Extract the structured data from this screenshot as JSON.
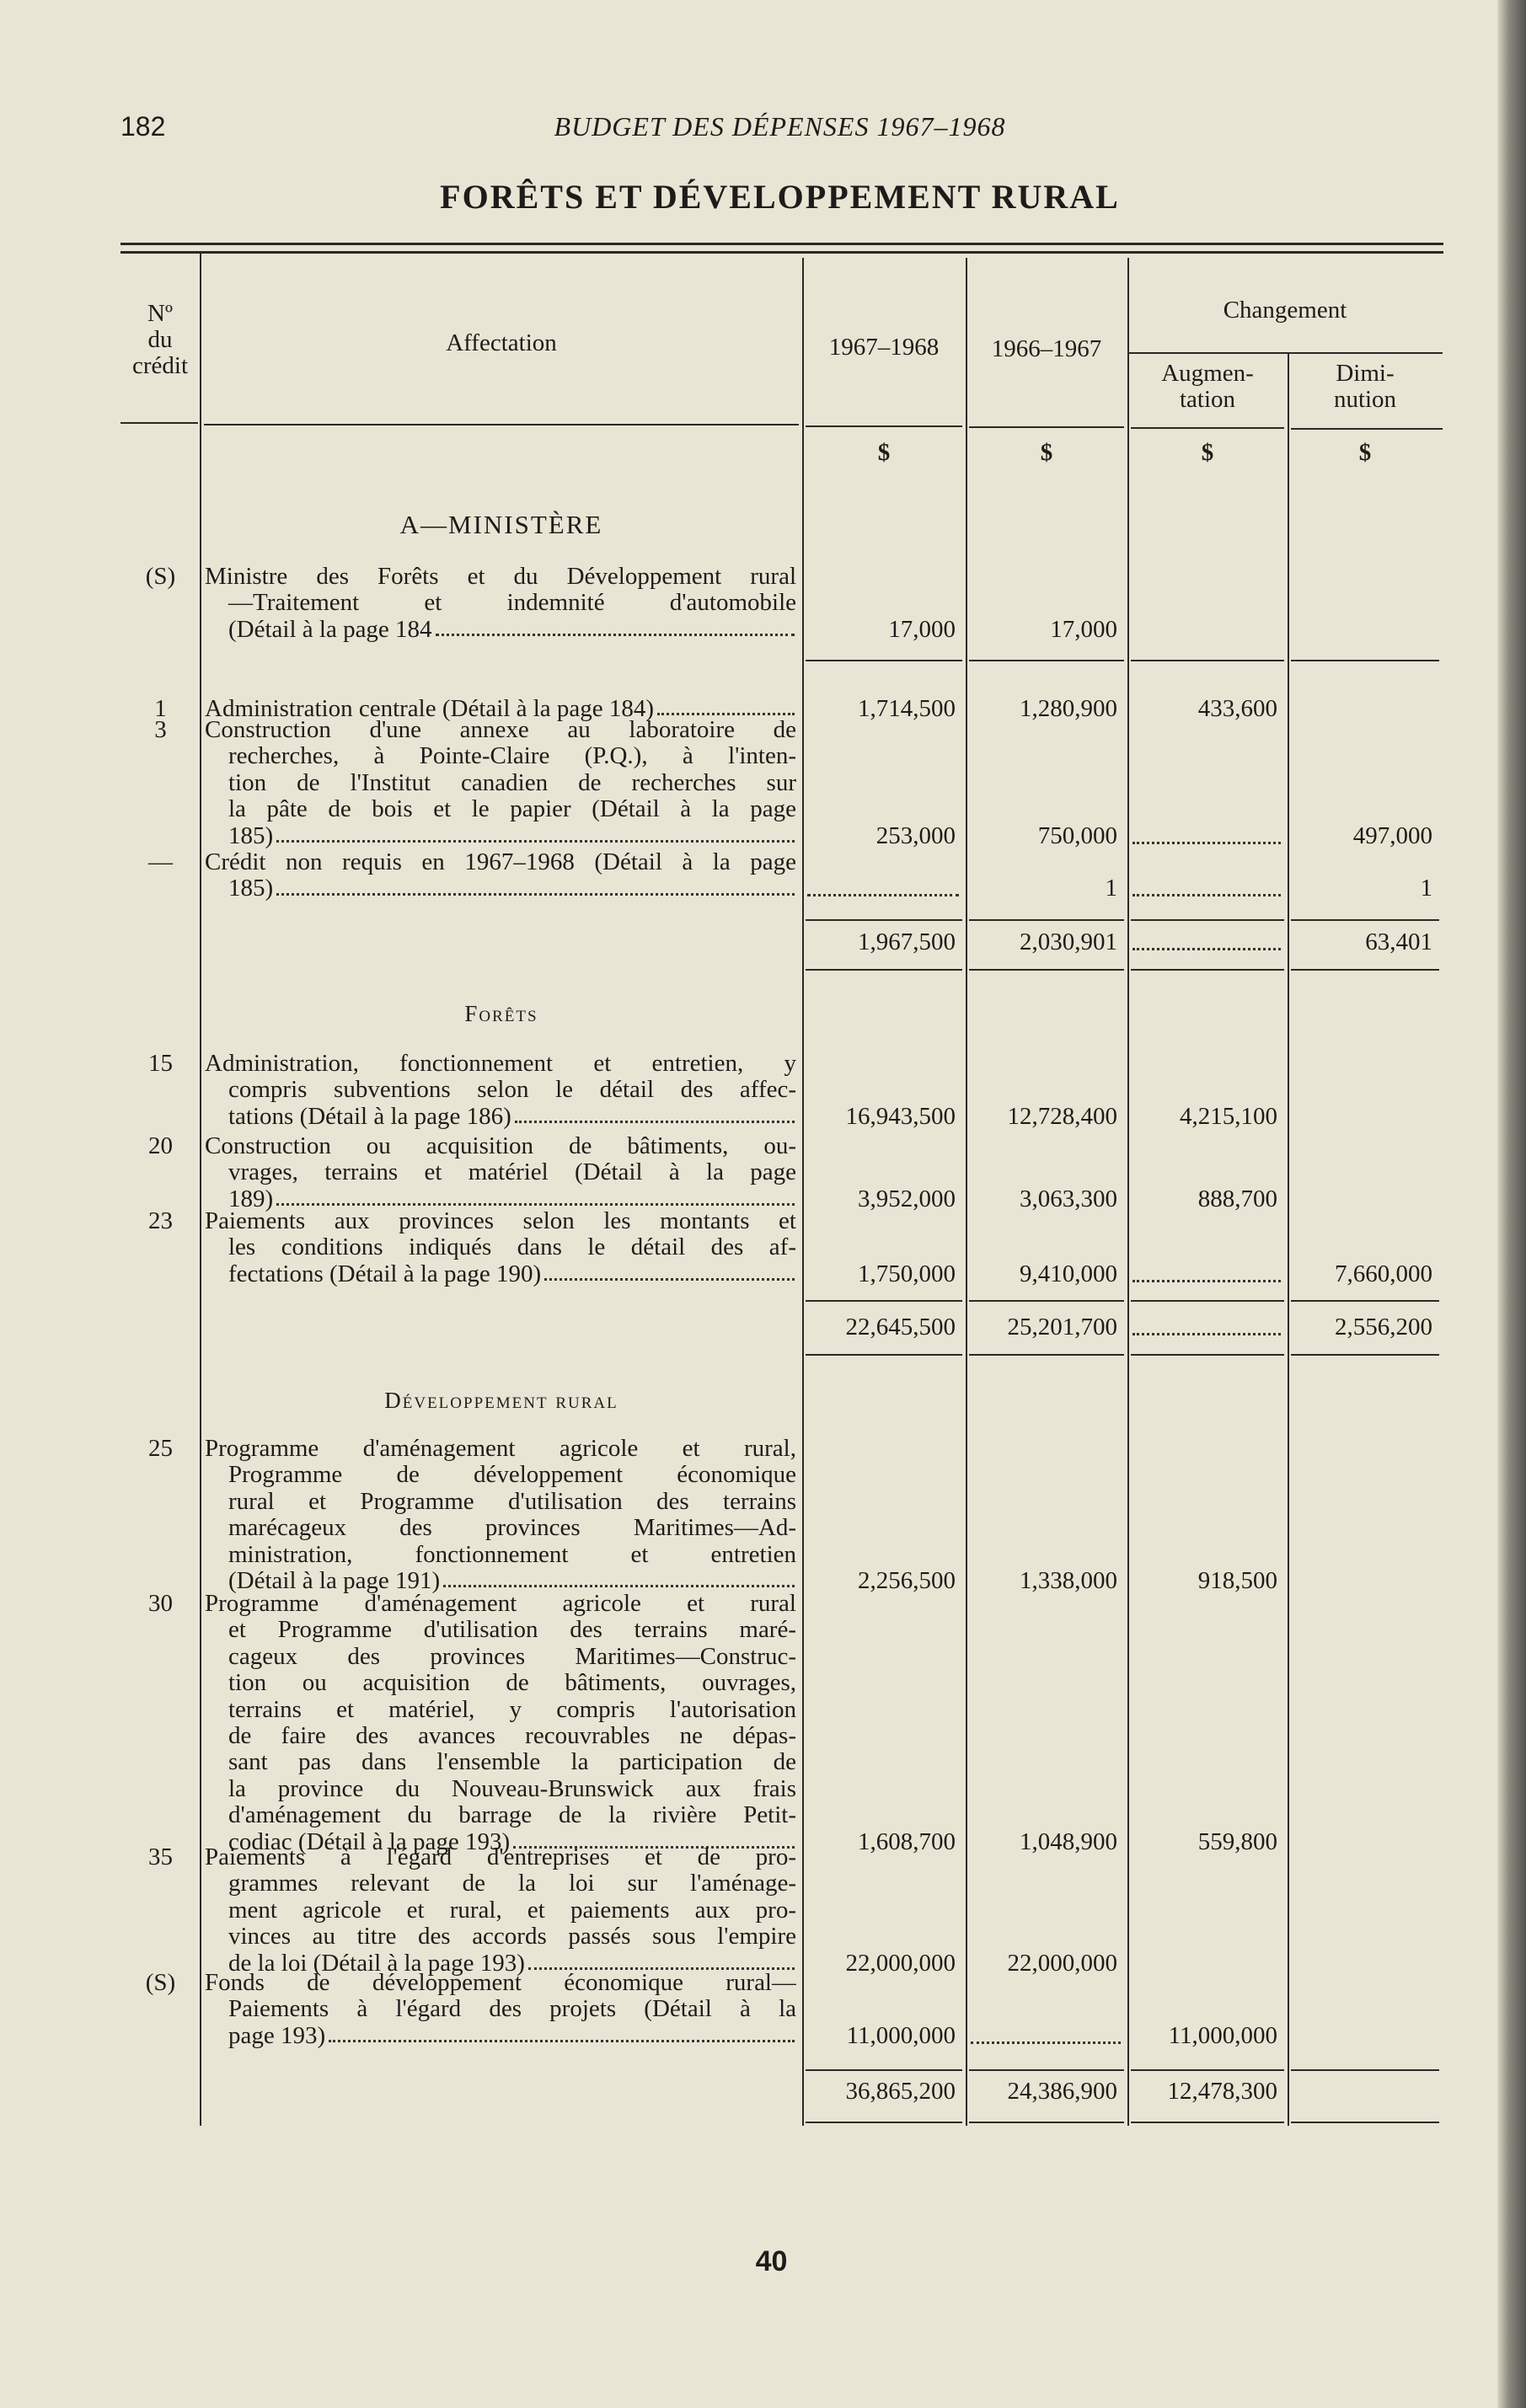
{
  "page": {
    "page_number": "182",
    "running_head": "BUDGET DES DÉPENSES 1967–1968",
    "title": "FORÊTS ET DÉVELOPPEMENT RURAL",
    "footer": "40"
  },
  "header": {
    "credit_no": [
      "Nº",
      "du",
      "crédit"
    ],
    "affectation": "Affectation",
    "year_current": "1967–1968",
    "year_previous": "1966–1967",
    "changement": "Changement",
    "augmentation": [
      "Augmen-",
      "tation"
    ],
    "diminution": [
      "Dimi-",
      "nution"
    ],
    "currency": [
      "$",
      "$",
      "$",
      "$"
    ]
  },
  "sections": [
    {
      "heading": "A—MINISTÈRE",
      "entries": [
        {
          "no": "(S)",
          "lines": [
            "Ministre des Forêts et du Développement rural",
            "—Traitement et indemnité d'automobile",
            "(Détail à la page 184"
          ],
          "values": [
            "17,000",
            "17,000",
            null,
            null
          ]
        },
        {
          "no": "1",
          "lines": [
            "Administration centrale (Détail à la page 184)"
          ],
          "values": [
            "1,714,500",
            "1,280,900",
            "433,600",
            null
          ]
        },
        {
          "no": "3",
          "lines": [
            "Construction d'une annexe au laboratoire de",
            "recherches, à Pointe-Claire (P.Q.), à l'inten-",
            "tion de l'Institut canadien de recherches sur",
            "la pâte de bois et le papier (Détail à la page",
            "185)"
          ],
          "values": [
            "253,000",
            "750,000",
            "dots",
            "497,000"
          ]
        },
        {
          "no": "—",
          "lines": [
            "Crédit non requis en 1967–1968 (Détail à la page",
            "185)"
          ],
          "values": [
            "dots",
            "1",
            "dots",
            "1"
          ]
        }
      ],
      "subtotal": [
        "1,967,500",
        "2,030,901",
        "dots",
        "63,401"
      ]
    },
    {
      "heading": "Forêts",
      "entries": [
        {
          "no": "15",
          "lines": [
            "Administration, fonctionnement et entretien, y",
            "compris subventions selon le détail des affec-",
            "tations (Détail à la page 186)"
          ],
          "values": [
            "16,943,500",
            "12,728,400",
            "4,215,100",
            null
          ]
        },
        {
          "no": "20",
          "lines": [
            "Construction ou acquisition de bâtiments, ou-",
            "vrages, terrains et matériel (Détail à la page",
            "189)"
          ],
          "values": [
            "3,952,000",
            "3,063,300",
            "888,700",
            null
          ]
        },
        {
          "no": "23",
          "lines": [
            "Paiements aux provinces selon les montants et",
            "les conditions indiqués dans le détail des af-",
            "fectations (Détail à la page 190)"
          ],
          "values": [
            "1,750,000",
            "9,410,000",
            "dots",
            "7,660,000"
          ]
        }
      ],
      "subtotal": [
        "22,645,500",
        "25,201,700",
        "dots",
        "2,556,200"
      ]
    },
    {
      "heading": "Développement rural",
      "entries": [
        {
          "no": "25",
          "lines": [
            "Programme d'aménagement agricole et rural,",
            "Programme de développement économique",
            "rural et Programme d'utilisation des terrains",
            "marécageux des provinces Maritimes—Ad-",
            "ministration, fonctionnement et entretien",
            "(Détail à la page 191)"
          ],
          "values": [
            "2,256,500",
            "1,338,000",
            "918,500",
            null
          ]
        },
        {
          "no": "30",
          "lines": [
            "Programme d'aménagement agricole et rural",
            "et Programme d'utilisation des terrains maré-",
            "cageux des provinces Maritimes—Construc-",
            "tion ou acquisition de bâtiments, ouvrages,",
            "terrains et matériel, y compris l'autorisation",
            "de faire des avances recouvrables ne dépas-",
            "sant pas dans l'ensemble la participation de",
            "la province du Nouveau-Brunswick aux frais",
            "d'aménagement du barrage de la rivière Petit-",
            "codiac (Détail à la page 193)"
          ],
          "values": [
            "1,608,700",
            "1,048,900",
            "559,800",
            null
          ]
        },
        {
          "no": "35",
          "lines": [
            "Paiements à l'égard d'entreprises et de pro-",
            "grammes relevant de la loi sur l'aménage-",
            "ment agricole et rural, et paiements aux pro-",
            "vinces au titre des accords passés sous l'empire",
            "de la loi (Détail à la page 193)"
          ],
          "values": [
            "22,000,000",
            "22,000,000",
            null,
            null
          ]
        },
        {
          "no": "(S)",
          "lines": [
            "Fonds de développement économique rural—",
            "Paiements à l'égard des projets (Détail à la",
            "page 193)"
          ],
          "values": [
            "11,000,000",
            "dots",
            "11,000,000",
            null
          ]
        }
      ],
      "subtotal": [
        "36,865,200",
        "24,386,900",
        "12,478,300",
        null
      ]
    }
  ]
}
